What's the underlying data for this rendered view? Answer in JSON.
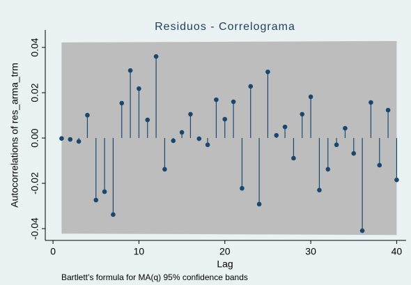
{
  "chart_data": {
    "type": "stem",
    "title": "Residuos - Correlograma",
    "y_label": "Autocorrelations of res_arma_trm",
    "x_label": "Lag",
    "note": "Bartlett’s formula for MA(q) 95% confidence bands",
    "x": [
      1,
      2,
      3,
      4,
      5,
      6,
      7,
      8,
      9,
      10,
      11,
      12,
      13,
      14,
      15,
      16,
      17,
      18,
      19,
      20,
      21,
      22,
      23,
      24,
      25,
      26,
      27,
      28,
      29,
      30,
      31,
      32,
      33,
      34,
      35,
      36,
      37,
      38,
      39,
      40
    ],
    "series": [
      {
        "color": "#1a476f",
        "values": [
          -0.0002,
          -0.0006,
          -0.0015,
          0.0101,
          -0.0274,
          -0.0237,
          -0.0338,
          0.0154,
          0.0298,
          0.0218,
          0.008,
          0.036,
          -0.0138,
          -0.0012,
          0.0025,
          0.0105,
          -0.0003,
          -0.003,
          0.0169,
          0.0083,
          0.016,
          -0.0222,
          0.0228,
          -0.0292,
          0.0292,
          0.0012,
          0.0049,
          -0.0089,
          0.0105,
          0.0182,
          -0.023,
          -0.0138,
          -0.003,
          0.0043,
          -0.0068,
          -0.0409,
          0.0157,
          -0.012,
          0.0123,
          -0.0185
        ]
      }
    ],
    "band": {
      "x": [
        1,
        40
      ],
      "upper": [
        0.0422,
        0.0428
      ],
      "lower": [
        -0.0422,
        -0.0428
      ],
      "color": "#bdbdbd"
    },
    "xlim": [
      -0.9,
      41.1
    ],
    "ylim": [
      -0.0452,
      0.0477
    ],
    "xticks": [
      0,
      10,
      20,
      30,
      40
    ],
    "yticks": [
      {
        "value": -0.04,
        "label": "-0.04"
      },
      {
        "value": -0.02,
        "label": "-0.02"
      },
      {
        "value": 0,
        "label": "0.00"
      },
      {
        "value": 0.02,
        "label": "0.02"
      },
      {
        "value": 0.04,
        "label": "0.04"
      }
    ]
  }
}
